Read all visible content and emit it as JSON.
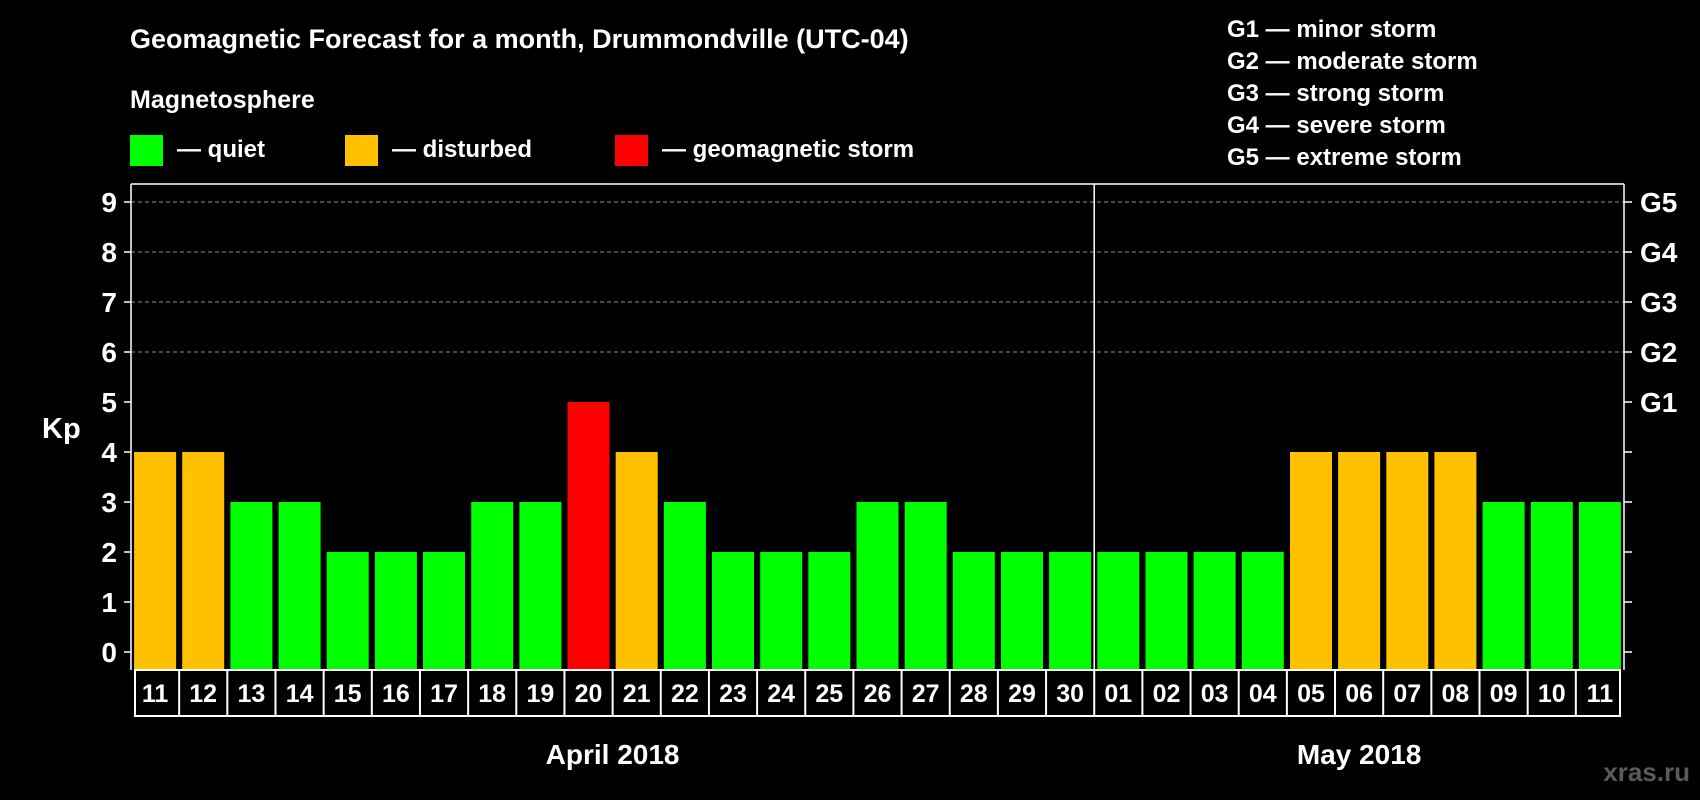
{
  "title": "Geomagnetic Forecast for a month, Drummondville (UTC-04)",
  "legend_heading": "Magnetosphere",
  "legend": [
    {
      "label": "— quiet",
      "color": "#00ff00"
    },
    {
      "label": "— disturbed",
      "color": "#ffc000"
    },
    {
      "label": "— geomagnetic storm",
      "color": "#ff0000"
    }
  ],
  "storm_scale": [
    "G1 — minor storm",
    "G2 — moderate storm",
    "G3 — strong storm",
    "G4 — severe storm",
    "G5 — extreme storm"
  ],
  "watermark": "xras.ru",
  "colors": {
    "background": "#000000",
    "quiet": "#00ff00",
    "disturbed": "#ffc000",
    "storm": "#ff0000",
    "axis": "#ffffff",
    "grid": "#8c8c8c"
  },
  "chart_data": {
    "type": "bar",
    "ylabel": "Kp",
    "ylim": [
      0,
      9
    ],
    "yticks": [
      0,
      1,
      2,
      3,
      4,
      5,
      6,
      7,
      8,
      9
    ],
    "right_axis_labels": [
      {
        "kp": 5,
        "label": "G1"
      },
      {
        "kp": 6,
        "label": "G2"
      },
      {
        "kp": 7,
        "label": "G3"
      },
      {
        "kp": 8,
        "label": "G4"
      },
      {
        "kp": 9,
        "label": "G5"
      }
    ],
    "grid_lines_at": [
      6,
      7,
      8,
      9
    ],
    "categories": [
      "11",
      "12",
      "13",
      "14",
      "15",
      "16",
      "17",
      "18",
      "19",
      "20",
      "21",
      "22",
      "23",
      "24",
      "25",
      "26",
      "27",
      "28",
      "29",
      "30",
      "01",
      "02",
      "03",
      "04",
      "05",
      "06",
      "07",
      "08",
      "09",
      "10",
      "11"
    ],
    "values": [
      4,
      4,
      3,
      3,
      2,
      2,
      2,
      3,
      3,
      5,
      4,
      3,
      2,
      2,
      2,
      3,
      3,
      2,
      2,
      2,
      2,
      2,
      2,
      2,
      4,
      4,
      4,
      4,
      3,
      3,
      3
    ],
    "months": [
      {
        "label": "April 2018",
        "start_index": 0,
        "end_index": 19
      },
      {
        "label": "May 2018",
        "start_index": 20,
        "end_index": 30
      }
    ]
  }
}
